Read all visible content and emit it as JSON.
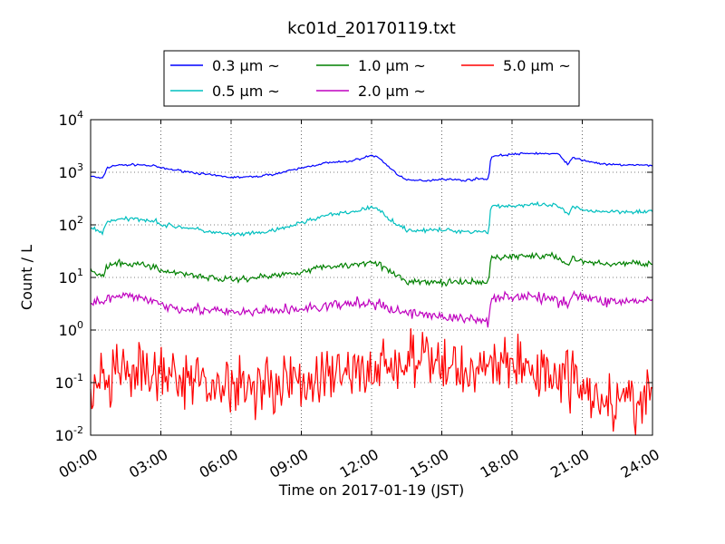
{
  "chart_data": {
    "type": "line",
    "title": "kc01d_20170119.txt",
    "xlabel": "Time on 2017-01-19 (JST)",
    "ylabel": "Count / L",
    "xlim": [
      0,
      24
    ],
    "ylim": [
      0.01,
      10000
    ],
    "yscale": "log",
    "grid": true,
    "legend_position": "top-center",
    "x_ticks": [
      {
        "value": 0,
        "label": "00:00"
      },
      {
        "value": 3,
        "label": "03:00"
      },
      {
        "value": 6,
        "label": "06:00"
      },
      {
        "value": 9,
        "label": "09:00"
      },
      {
        "value": 12,
        "label": "12:00"
      },
      {
        "value": 15,
        "label": "15:00"
      },
      {
        "value": 18,
        "label": "18:00"
      },
      {
        "value": 21,
        "label": "21:00"
      },
      {
        "value": 24,
        "label": "24:00"
      }
    ],
    "y_ticks": [
      {
        "value": 0.01,
        "base": "10",
        "exp": "-2"
      },
      {
        "value": 0.1,
        "base": "10",
        "exp": "-1"
      },
      {
        "value": 1,
        "base": "10",
        "exp": "0"
      },
      {
        "value": 10,
        "base": "10",
        "exp": "1"
      },
      {
        "value": 100,
        "base": "10",
        "exp": "2"
      },
      {
        "value": 1000,
        "base": "10",
        "exp": "3"
      },
      {
        "value": 10000,
        "base": "10",
        "exp": "4"
      }
    ],
    "series": [
      {
        "name": "0.3 μm ~",
        "color": "#0000ff",
        "noise": 0.02,
        "points": [
          [
            0,
            850
          ],
          [
            0.5,
            750
          ],
          [
            0.7,
            1200
          ],
          [
            1.0,
            1350
          ],
          [
            2.0,
            1400
          ],
          [
            2.8,
            1300
          ],
          [
            3.0,
            1200
          ],
          [
            4.0,
            1050
          ],
          [
            5.0,
            900
          ],
          [
            6.0,
            800
          ],
          [
            7.0,
            820
          ],
          [
            8.0,
            950
          ],
          [
            9.0,
            1200
          ],
          [
            10.0,
            1500
          ],
          [
            11.0,
            1600
          ],
          [
            11.5,
            1800
          ],
          [
            12.0,
            2100
          ],
          [
            12.3,
            1900
          ],
          [
            13.0,
            1000
          ],
          [
            13.5,
            700
          ],
          [
            14.5,
            700
          ],
          [
            15.0,
            750
          ],
          [
            16.0,
            700
          ],
          [
            16.5,
            750
          ],
          [
            17.0,
            750
          ],
          [
            17.1,
            2000
          ],
          [
            18.0,
            2200
          ],
          [
            19.0,
            2300
          ],
          [
            20.0,
            2200
          ],
          [
            20.4,
            1400
          ],
          [
            20.6,
            1900
          ],
          [
            21.0,
            1700
          ],
          [
            22.0,
            1400
          ],
          [
            24.0,
            1350
          ]
        ]
      },
      {
        "name": "0.5 μm ~",
        "color": "#00bfbf",
        "noise": 0.04,
        "points": [
          [
            0,
            90
          ],
          [
            0.5,
            70
          ],
          [
            0.7,
            115
          ],
          [
            1.0,
            125
          ],
          [
            2.0,
            130
          ],
          [
            2.8,
            120
          ],
          [
            3.0,
            100
          ],
          [
            4.0,
            90
          ],
          [
            5.0,
            75
          ],
          [
            6.0,
            65
          ],
          [
            7.0,
            68
          ],
          [
            8.0,
            80
          ],
          [
            9.0,
            110
          ],
          [
            10.0,
            150
          ],
          [
            11.0,
            170
          ],
          [
            11.5,
            190
          ],
          [
            12.0,
            220
          ],
          [
            12.3,
            190
          ],
          [
            13.0,
            110
          ],
          [
            13.5,
            80
          ],
          [
            14.5,
            78
          ],
          [
            15.0,
            80
          ],
          [
            16.0,
            75
          ],
          [
            17.0,
            75
          ],
          [
            17.1,
            230
          ],
          [
            18.0,
            230
          ],
          [
            19.0,
            240
          ],
          [
            20.0,
            230
          ],
          [
            20.4,
            150
          ],
          [
            20.6,
            220
          ],
          [
            21.0,
            190
          ],
          [
            22.0,
            180
          ],
          [
            24.0,
            180
          ]
        ]
      },
      {
        "name": "1.0 μm ~",
        "color": "#008000",
        "noise": 0.06,
        "points": [
          [
            0,
            14
          ],
          [
            0.5,
            10
          ],
          [
            0.7,
            16
          ],
          [
            1.0,
            18
          ],
          [
            2.0,
            18
          ],
          [
            2.8,
            16
          ],
          [
            3.0,
            13
          ],
          [
            4.0,
            12
          ],
          [
            5.0,
            10
          ],
          [
            6.0,
            9
          ],
          [
            7.0,
            10
          ],
          [
            8.0,
            11
          ],
          [
            9.0,
            13
          ],
          [
            10.0,
            16
          ],
          [
            11.0,
            17
          ],
          [
            11.5,
            18
          ],
          [
            12.0,
            21
          ],
          [
            12.3,
            18
          ],
          [
            13.0,
            11
          ],
          [
            13.5,
            8.5
          ],
          [
            14.5,
            8
          ],
          [
            15.0,
            8
          ],
          [
            16.0,
            8
          ],
          [
            17.0,
            8
          ],
          [
            17.1,
            24
          ],
          [
            18.0,
            25
          ],
          [
            19.0,
            26
          ],
          [
            20.0,
            24
          ],
          [
            20.4,
            17
          ],
          [
            20.6,
            24
          ],
          [
            21.0,
            20
          ],
          [
            22.0,
            18
          ],
          [
            24.0,
            19
          ]
        ]
      },
      {
        "name": "2.0 μm ~",
        "color": "#bf00bf",
        "noise": 0.1,
        "points": [
          [
            0,
            3.5
          ],
          [
            0.5,
            3.2
          ],
          [
            0.7,
            4.0
          ],
          [
            1.0,
            4.1
          ],
          [
            2.0,
            4.3
          ],
          [
            2.8,
            3.6
          ],
          [
            3.0,
            3.0
          ],
          [
            4.0,
            2.6
          ],
          [
            5.0,
            2.4
          ],
          [
            6.0,
            2.1
          ],
          [
            7.0,
            2.2
          ],
          [
            8.0,
            2.4
          ],
          [
            9.0,
            2.5
          ],
          [
            10.0,
            2.8
          ],
          [
            11.0,
            3.1
          ],
          [
            11.5,
            3.2
          ],
          [
            12.0,
            3.3
          ],
          [
            12.3,
            2.9
          ],
          [
            13.0,
            2.4
          ],
          [
            13.5,
            2.1
          ],
          [
            14.5,
            2.0
          ],
          [
            15.0,
            1.8
          ],
          [
            16.0,
            1.6
          ],
          [
            17.0,
            1.5
          ],
          [
            17.1,
            4.2
          ],
          [
            18.0,
            4.4
          ],
          [
            19.0,
            4.2
          ],
          [
            20.0,
            3.6
          ],
          [
            20.4,
            3.4
          ],
          [
            20.6,
            5.0
          ],
          [
            21.0,
            4.2
          ],
          [
            22.0,
            3.5
          ],
          [
            24.0,
            3.6
          ]
        ]
      },
      {
        "name": "5.0 μm ~",
        "color": "#ff0000",
        "noise": 0.55,
        "points": [
          [
            0,
            0.07
          ],
          [
            1.0,
            0.12
          ],
          [
            2.0,
            0.14
          ],
          [
            3.0,
            0.12
          ],
          [
            4.0,
            0.11
          ],
          [
            5.0,
            0.1
          ],
          [
            6.0,
            0.09
          ],
          [
            7.0,
            0.1
          ],
          [
            8.0,
            0.1
          ],
          [
            9.0,
            0.11
          ],
          [
            10.0,
            0.12
          ],
          [
            11.0,
            0.15
          ],
          [
            12.0,
            0.18
          ],
          [
            13.0,
            0.22
          ],
          [
            14.0,
            0.28
          ],
          [
            15.0,
            0.22
          ],
          [
            16.0,
            0.16
          ],
          [
            17.0,
            0.25
          ],
          [
            18.0,
            0.22
          ],
          [
            19.0,
            0.17
          ],
          [
            20.0,
            0.16
          ],
          [
            21.0,
            0.1
          ],
          [
            22.0,
            0.05
          ],
          [
            23.0,
            0.04
          ],
          [
            24.0,
            0.05
          ]
        ]
      }
    ]
  }
}
